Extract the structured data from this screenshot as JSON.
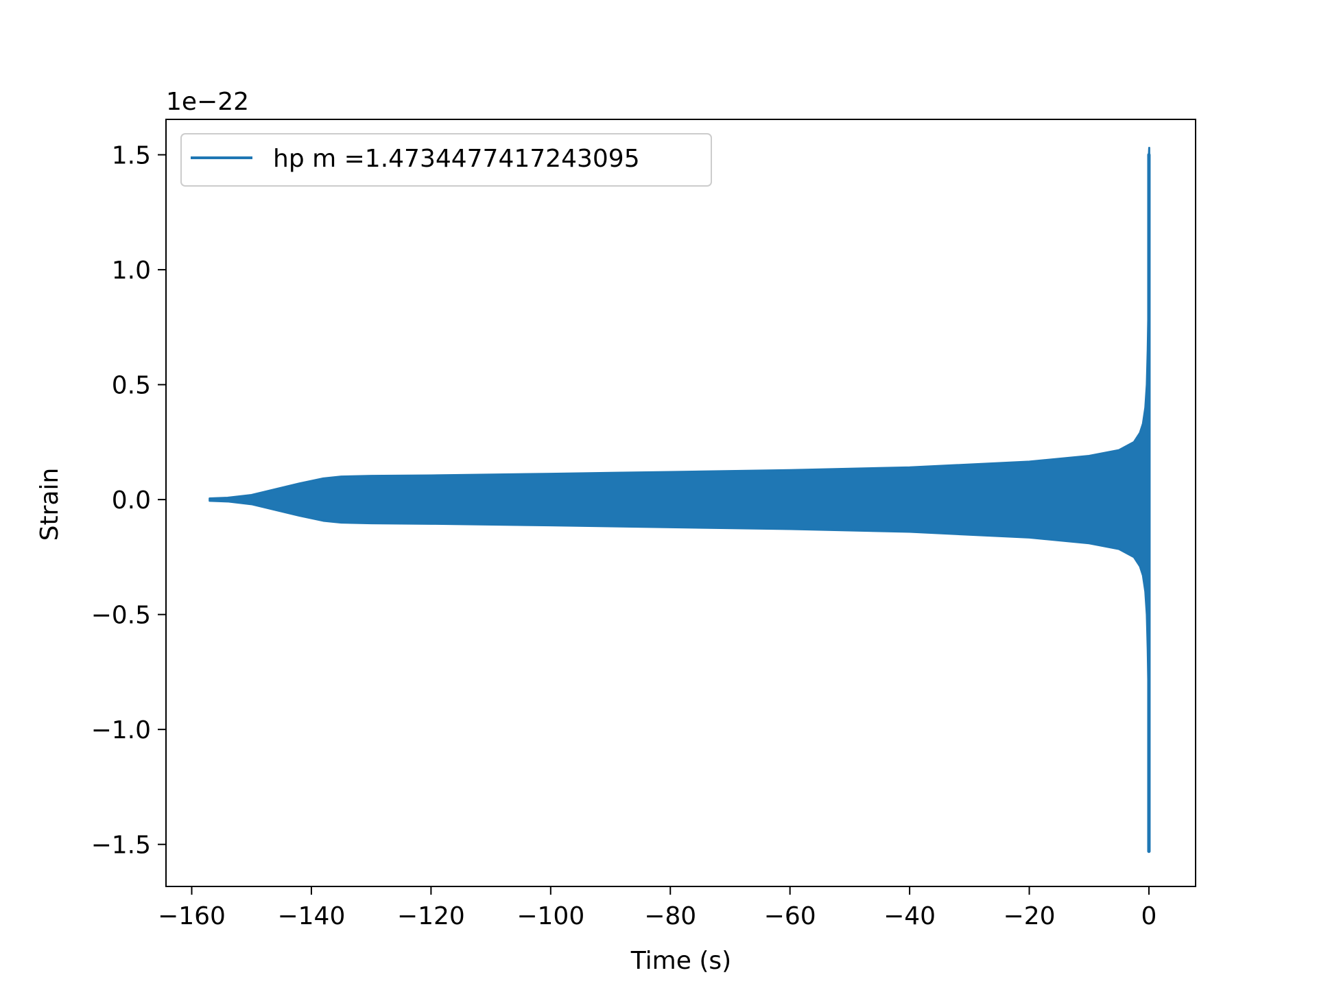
{
  "chart_data": {
    "type": "line",
    "title": "",
    "xlabel": "Time (s)",
    "ylabel": "Strain",
    "y_scale_label": "1e−22",
    "xlim": [
      -164.3,
      7.8
    ],
    "ylim": [
      -1.683,
      1.654
    ],
    "x_ticks": [
      -160,
      -140,
      -120,
      -100,
      -80,
      -60,
      -40,
      -20,
      0
    ],
    "x_tick_labels": [
      "−160",
      "−140",
      "−120",
      "−100",
      "−80",
      "−60",
      "−40",
      "−20",
      "0"
    ],
    "y_ticks": [
      -1.5,
      -1.0,
      -0.5,
      0.0,
      0.5,
      1.0,
      1.5
    ],
    "y_tick_labels": [
      "−1.5",
      "−1.0",
      "−0.5",
      "0.0",
      "0.5",
      "1.0",
      "1.5"
    ],
    "grid": false,
    "legend_position": "top-left",
    "series": [
      {
        "name": "hp m =1.4734477417243095",
        "color": "#1f77b4",
        "envelope_time": [
          -157.0,
          -154.0,
          -150.0,
          -146.0,
          -142.0,
          -138.0,
          -135.0,
          -130.0,
          -120.0,
          -100.0,
          -80.0,
          -60.0,
          -40.0,
          -20.0,
          -10.0,
          -5.0,
          -2.5,
          -1.5,
          -1.0,
          -0.6,
          -0.35,
          -0.2,
          -0.1,
          0.0,
          0.05
        ],
        "envelope_amplitude": [
          0.005,
          0.008,
          0.02,
          0.045,
          0.07,
          0.092,
          0.1,
          0.103,
          0.105,
          0.112,
          0.12,
          0.128,
          0.14,
          0.165,
          0.19,
          0.215,
          0.25,
          0.29,
          0.33,
          0.4,
          0.5,
          0.65,
          0.8,
          1.5,
          1.53
        ]
      }
    ]
  }
}
